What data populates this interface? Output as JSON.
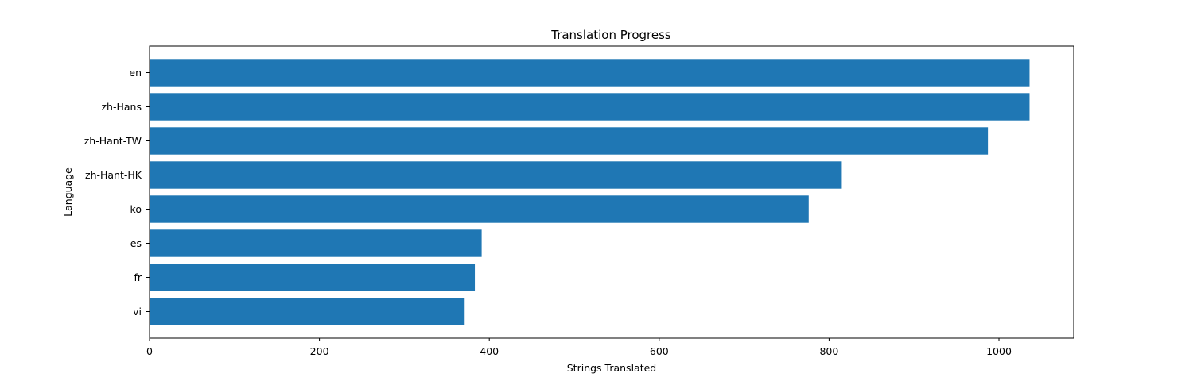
{
  "chart_data": {
    "type": "bar",
    "orientation": "horizontal",
    "title": "Translation Progress",
    "xlabel": "Strings Translated",
    "ylabel": "Language",
    "categories": [
      "en",
      "zh-Hans",
      "zh-Hant-TW",
      "zh-Hant-HK",
      "ko",
      "es",
      "fr",
      "vi"
    ],
    "values": [
      1036,
      1036,
      987,
      815,
      776,
      391,
      383,
      371
    ],
    "xlim": [
      0,
      1088
    ],
    "xticks": [
      0,
      200,
      400,
      600,
      800,
      1000
    ],
    "bar_color": "#1f77b4",
    "grid": false,
    "legend": "none"
  }
}
